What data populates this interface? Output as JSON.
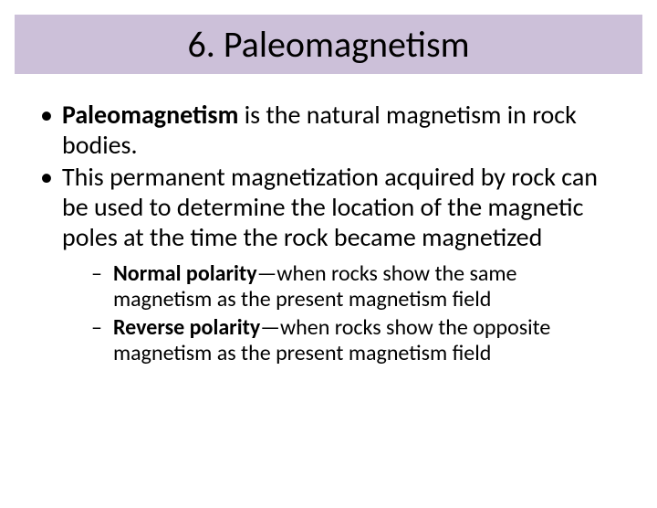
{
  "title": "6. Paleomagnetism",
  "bullets": [
    {
      "bold_lead": "Paleomagnetism",
      "rest": " is the natural magnetism in rock bodies."
    },
    {
      "text": "This permanent magnetization acquired by rock can be used to determine the location of the magnetic poles at the time the rock became magnetized"
    }
  ],
  "subbullets": [
    {
      "bold_lead": "Normal polarity",
      "rest": "—when rocks show the same magnetism as the present magnetism field"
    },
    {
      "bold_lead": "Reverse polarity",
      "rest": "—when rocks show the opposite magnetism as the present magnetism field"
    }
  ],
  "colors": {
    "title_bg": "#ccc0d9",
    "text": "#000000",
    "page_bg": "#ffffff"
  },
  "typography": {
    "title_fontsize": 40,
    "bullet_fontsize": 28,
    "sub_fontsize": 24,
    "font_family": "Calibri"
  }
}
